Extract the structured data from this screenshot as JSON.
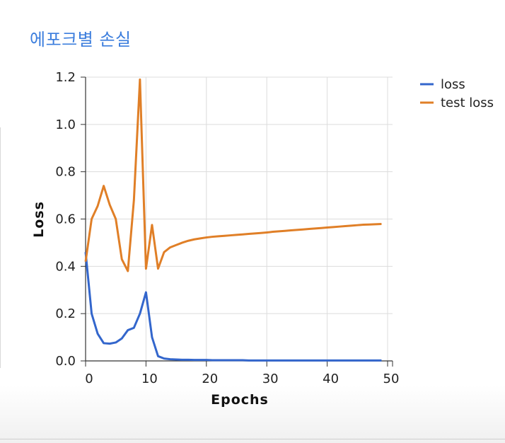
{
  "page": {
    "title": "에포크별 손실"
  },
  "chart_data": {
    "type": "line",
    "title": "에포크별 손실",
    "xlabel": "Epochs",
    "ylabel": "Loss",
    "xlim": [
      0,
      50
    ],
    "ylim": [
      0,
      1.2
    ],
    "x_ticks": [
      "0",
      "10",
      "20",
      "30",
      "40",
      "50"
    ],
    "y_ticks": [
      "0.0",
      "0.2",
      "0.4",
      "0.6",
      "0.8",
      "1.0",
      "1.2"
    ],
    "grid": true,
    "legend_position": "top-right",
    "x": [
      0,
      1,
      2,
      3,
      4,
      5,
      6,
      7,
      8,
      9,
      10,
      11,
      12,
      13,
      14,
      15,
      16,
      17,
      18,
      19,
      20,
      21,
      22,
      23,
      24,
      25,
      26,
      27,
      28,
      29,
      30,
      31,
      32,
      33,
      34,
      35,
      36,
      37,
      38,
      39,
      40,
      41,
      42,
      43,
      44,
      45,
      46,
      47,
      48,
      49
    ],
    "series": [
      {
        "name": "loss",
        "color": "#3366cc",
        "values": [
          0.46,
          0.2,
          0.115,
          0.075,
          0.073,
          0.078,
          0.095,
          0.13,
          0.14,
          0.2,
          0.29,
          0.1,
          0.02,
          0.01,
          0.007,
          0.006,
          0.005,
          0.005,
          0.004,
          0.004,
          0.004,
          0.003,
          0.003,
          0.003,
          0.003,
          0.003,
          0.003,
          0.002,
          0.002,
          0.002,
          0.002,
          0.002,
          0.002,
          0.002,
          0.002,
          0.002,
          0.002,
          0.002,
          0.002,
          0.002,
          0.002,
          0.002,
          0.002,
          0.002,
          0.002,
          0.002,
          0.002,
          0.002,
          0.002,
          0.002
        ]
      },
      {
        "name": "test loss",
        "color": "#e07f27",
        "values": [
          0.42,
          0.6,
          0.655,
          0.74,
          0.66,
          0.6,
          0.43,
          0.38,
          0.68,
          1.19,
          0.39,
          0.575,
          0.39,
          0.46,
          0.48,
          0.49,
          0.5,
          0.508,
          0.514,
          0.518,
          0.522,
          0.525,
          0.527,
          0.529,
          0.531,
          0.533,
          0.535,
          0.537,
          0.539,
          0.541,
          0.543,
          0.546,
          0.548,
          0.55,
          0.552,
          0.554,
          0.556,
          0.558,
          0.56,
          0.562,
          0.564,
          0.566,
          0.568,
          0.57,
          0.572,
          0.574,
          0.576,
          0.577,
          0.578,
          0.579
        ]
      }
    ]
  }
}
